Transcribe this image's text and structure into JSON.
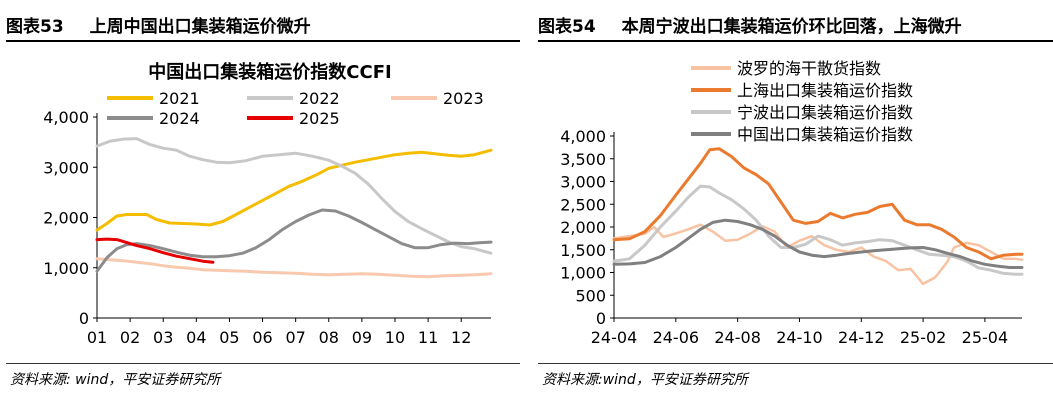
{
  "panels": [
    {
      "fig_num": "图表53",
      "caption": "上周中国出口集装箱运价微升",
      "source": "资料来源: wind，平安证券研究所"
    },
    {
      "fig_num": "图表54",
      "caption": "本周宁波出口集装箱运价环比回落，上海微升",
      "source": "资料来源:wind，平安证券研究所"
    }
  ],
  "chart_data": [
    {
      "type": "line",
      "title": "中国出口集装箱运价指数CCFI",
      "xlabel": "",
      "ylabel": "",
      "x_ticks": [
        "01",
        "02",
        "03",
        "04",
        "05",
        "06",
        "07",
        "08",
        "09",
        "10",
        "11",
        "12"
      ],
      "xlim": [
        1,
        12.9
      ],
      "ylim": [
        0,
        4000
      ],
      "y_ticks": [
        "0",
        "1,000",
        "2,000",
        "3,000",
        "4,000"
      ],
      "grid": false,
      "legend_placement": "top",
      "series": [
        {
          "name": "2021",
          "color": "#f5bd00",
          "width": 3,
          "x": [
            1.0,
            1.3,
            1.6,
            1.9,
            2.2,
            2.5,
            2.8,
            3.2,
            3.6,
            4.0,
            4.4,
            4.8,
            5.2,
            5.6,
            6.0,
            6.4,
            6.8,
            7.2,
            7.6,
            8.0,
            8.4,
            8.8,
            9.2,
            9.6,
            10.0,
            10.4,
            10.8,
            11.2,
            11.6,
            12.0,
            12.4,
            12.9
          ],
          "values": [
            1750,
            1880,
            2030,
            2060,
            2060,
            2060,
            1960,
            1890,
            1880,
            1870,
            1850,
            1920,
            2060,
            2200,
            2340,
            2480,
            2620,
            2720,
            2840,
            2980,
            3040,
            3100,
            3150,
            3200,
            3250,
            3280,
            3300,
            3270,
            3240,
            3220,
            3250,
            3340
          ]
        },
        {
          "name": "2022",
          "color": "#c8c8c8",
          "width": 3,
          "x": [
            1.0,
            1.4,
            1.8,
            2.2,
            2.6,
            3.0,
            3.4,
            3.8,
            4.2,
            4.6,
            5.0,
            5.5,
            6.0,
            6.5,
            7.0,
            7.5,
            8.0,
            8.4,
            8.8,
            9.2,
            9.6,
            10.0,
            10.4,
            10.8,
            11.2,
            11.6,
            12.0,
            12.4,
            12.9
          ],
          "values": [
            3420,
            3520,
            3560,
            3570,
            3450,
            3380,
            3340,
            3220,
            3150,
            3100,
            3090,
            3130,
            3220,
            3250,
            3280,
            3220,
            3140,
            3020,
            2880,
            2660,
            2380,
            2120,
            1920,
            1780,
            1650,
            1520,
            1420,
            1380,
            1290
          ]
        },
        {
          "name": "2023",
          "color": "#f8c9ae",
          "width": 3,
          "x": [
            1.0,
            1.4,
            1.8,
            2.2,
            2.6,
            3.0,
            3.4,
            3.8,
            4.2,
            4.6,
            5.0,
            5.5,
            6.0,
            6.5,
            7.0,
            7.5,
            8.0,
            8.5,
            9.0,
            9.5,
            10.0,
            10.5,
            11.0,
            11.5,
            12.0,
            12.4,
            12.9
          ],
          "values": [
            1180,
            1160,
            1140,
            1110,
            1080,
            1040,
            1010,
            990,
            960,
            950,
            940,
            930,
            910,
            900,
            890,
            870,
            860,
            870,
            880,
            870,
            850,
            830,
            820,
            840,
            850,
            860,
            880
          ]
        },
        {
          "name": "2024",
          "color": "#8c8c8c",
          "width": 3,
          "x": [
            1.0,
            1.3,
            1.6,
            1.9,
            2.2,
            2.6,
            3.0,
            3.4,
            3.8,
            4.2,
            4.6,
            5.0,
            5.4,
            5.8,
            6.2,
            6.6,
            7.0,
            7.4,
            7.8,
            8.2,
            8.6,
            9.0,
            9.4,
            9.8,
            10.2,
            10.6,
            11.0,
            11.4,
            11.8,
            12.2,
            12.6,
            12.9
          ],
          "values": [
            930,
            1200,
            1380,
            1460,
            1480,
            1440,
            1380,
            1310,
            1250,
            1220,
            1220,
            1240,
            1290,
            1400,
            1560,
            1760,
            1920,
            2050,
            2150,
            2130,
            2030,
            1900,
            1760,
            1620,
            1480,
            1400,
            1400,
            1460,
            1490,
            1480,
            1500,
            1510
          ]
        },
        {
          "name": "2025",
          "color": "#e60000",
          "width": 3,
          "x": [
            1.0,
            1.3,
            1.6,
            1.9,
            2.2,
            2.6,
            3.0,
            3.4,
            3.8,
            4.2,
            4.5
          ],
          "values": [
            1560,
            1570,
            1560,
            1500,
            1440,
            1380,
            1300,
            1230,
            1180,
            1130,
            1110
          ]
        }
      ]
    },
    {
      "type": "line",
      "title": "",
      "xlabel": "",
      "ylabel": "",
      "x_ticks": [
        "24-04",
        "24-06",
        "24-08",
        "24-10",
        "24-12",
        "25-02",
        "25-04"
      ],
      "xlim": [
        0,
        13.2
      ],
      "ylim": [
        0,
        4000
      ],
      "y_ticks": [
        "0",
        "500",
        "1,000",
        "1,500",
        "2,000",
        "2,500",
        "3,000",
        "3,500",
        "4,000"
      ],
      "grid": false,
      "legend_placement": "top-center",
      "series": [
        {
          "name": "波罗的海干散货指数",
          "color": "#f8c3a2",
          "width": 2.5,
          "x": [
            0.0,
            0.5,
            1.0,
            1.3,
            1.6,
            2.0,
            2.4,
            2.8,
            3.2,
            3.6,
            4.0,
            4.4,
            4.8,
            5.2,
            5.6,
            6.0,
            6.4,
            6.8,
            7.2,
            7.6,
            8.0,
            8.4,
            8.8,
            9.2,
            9.6,
            10.0,
            10.4,
            10.8,
            11.0,
            11.4,
            11.8,
            12.2,
            12.6,
            13.0,
            13.2
          ],
          "values": [
            1750,
            1800,
            1850,
            2000,
            1780,
            1860,
            1950,
            2050,
            1900,
            1700,
            1720,
            1850,
            2020,
            1900,
            1550,
            1700,
            1800,
            1600,
            1500,
            1450,
            1550,
            1350,
            1250,
            1050,
            1080,
            750,
            900,
            1250,
            1550,
            1650,
            1600,
            1450,
            1300,
            1300,
            1280
          ]
        },
        {
          "name": "上海出口集装箱运价指数",
          "color": "#eb7a2f",
          "width": 3,
          "x": [
            0.0,
            0.5,
            1.0,
            1.5,
            2.0,
            2.4,
            2.8,
            3.1,
            3.4,
            3.8,
            4.2,
            4.6,
            5.0,
            5.4,
            5.8,
            6.2,
            6.6,
            7.0,
            7.4,
            7.8,
            8.2,
            8.6,
            9.0,
            9.4,
            9.8,
            10.2,
            10.6,
            11.0,
            11.4,
            11.8,
            12.2,
            12.6,
            13.0,
            13.2
          ],
          "values": [
            1720,
            1740,
            1900,
            2250,
            2700,
            3050,
            3400,
            3700,
            3720,
            3550,
            3300,
            3150,
            2950,
            2550,
            2150,
            2080,
            2120,
            2300,
            2200,
            2280,
            2320,
            2450,
            2500,
            2150,
            2050,
            2050,
            1950,
            1780,
            1550,
            1450,
            1300,
            1380,
            1400,
            1400
          ]
        },
        {
          "name": "宁波出口集装箱运价指数",
          "color": "#c8c8c8",
          "width": 3,
          "x": [
            0.0,
            0.5,
            1.0,
            1.5,
            2.0,
            2.4,
            2.8,
            3.1,
            3.4,
            3.8,
            4.2,
            4.6,
            5.0,
            5.4,
            5.8,
            6.2,
            6.6,
            7.0,
            7.4,
            7.8,
            8.2,
            8.6,
            9.0,
            9.4,
            9.8,
            10.2,
            10.6,
            11.0,
            11.4,
            11.8,
            12.2,
            12.6,
            13.0,
            13.2
          ],
          "values": [
            1250,
            1300,
            1600,
            2000,
            2350,
            2650,
            2900,
            2880,
            2750,
            2600,
            2400,
            2150,
            1800,
            1550,
            1550,
            1620,
            1800,
            1720,
            1600,
            1650,
            1680,
            1720,
            1700,
            1600,
            1500,
            1400,
            1380,
            1350,
            1250,
            1100,
            1050,
            980,
            960,
            960
          ]
        },
        {
          "name": "中国出口集装箱运价指数",
          "color": "#808080",
          "width": 3,
          "x": [
            0.0,
            0.5,
            1.0,
            1.5,
            2.0,
            2.4,
            2.8,
            3.2,
            3.6,
            4.0,
            4.4,
            4.8,
            5.2,
            5.6,
            6.0,
            6.4,
            6.8,
            7.2,
            7.6,
            8.0,
            8.4,
            8.8,
            9.2,
            9.6,
            10.0,
            10.4,
            10.8,
            11.2,
            11.6,
            12.0,
            12.4,
            12.8,
            13.2
          ],
          "values": [
            1180,
            1190,
            1220,
            1350,
            1550,
            1750,
            1950,
            2100,
            2150,
            2120,
            2050,
            1950,
            1800,
            1600,
            1450,
            1380,
            1350,
            1380,
            1420,
            1450,
            1480,
            1500,
            1520,
            1540,
            1550,
            1500,
            1420,
            1350,
            1250,
            1180,
            1140,
            1110,
            1110
          ]
        }
      ]
    }
  ]
}
